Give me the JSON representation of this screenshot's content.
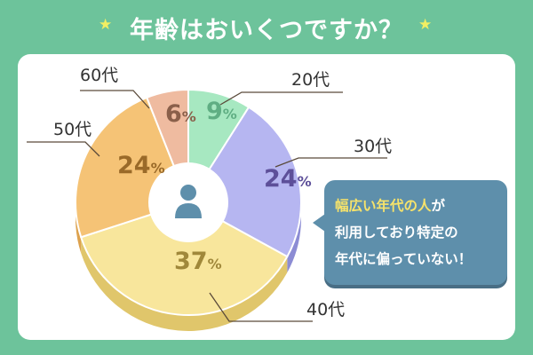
{
  "title": "年齢はおいくつですか？",
  "chart_data": {
    "type": "pie",
    "title": "年齢はおいくつですか？",
    "slices": [
      {
        "label": "20代",
        "value": 9,
        "color": "#a7e8c1",
        "side": "#7fcf9d",
        "text_color": "#5fae83"
      },
      {
        "label": "30代",
        "value": 24,
        "color": "#b6b6f1",
        "side": "#8c8cd4",
        "text_color": "#5d4f99"
      },
      {
        "label": "40代",
        "value": 37,
        "color": "#f8e69c",
        "side": "#e0c66b",
        "text_color": "#a0883a"
      },
      {
        "label": "50代",
        "value": 24,
        "color": "#f5c376",
        "side": "#dda24e",
        "text_color": "#9a6a29"
      },
      {
        "label": "60代",
        "value": 6,
        "color": "#efbba0",
        "side": "#d89876",
        "text_color": "#8a5f4a"
      }
    ],
    "unit": "%"
  },
  "callout": {
    "line1_highlight": "幅広い年代の人",
    "line1_rest": "が",
    "line2": "利用しており特定の",
    "line3": "年代に偏っていない！"
  },
  "colors": {
    "background": "#6dc39b",
    "card": "#ffffff",
    "star": "#f3ef62",
    "callout": "#5e8fab",
    "callout_highlight": "#f7e36a",
    "leader_line": "#5a4a3a",
    "person_icon": "#5e8fab"
  },
  "icons": {
    "center": "person-icon",
    "stars": "star-icon"
  }
}
